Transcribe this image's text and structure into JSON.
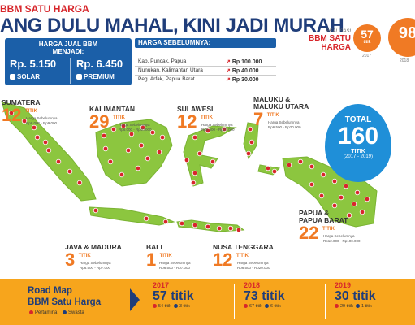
{
  "header": {
    "subtitle": "BBM SATU HARGA",
    "headline": "ANG DULU MAHAL, KINI JADI MURAH"
  },
  "realisasi": {
    "label_top": "REALISASI",
    "label_bottom": "BBM SATU HARGA",
    "c2017_value": "57",
    "c2017_unit": "titik",
    "c2017_year": "2017",
    "c2018_value": "98",
    "c2018_year": "2018"
  },
  "harga_jual": {
    "title_line1": "HARGA JUAL BBM",
    "title_line2": "MENJADI:",
    "solar_price": "Rp. 5.150",
    "premium_price": "Rp. 6.450",
    "solar_label": "SOLAR",
    "premium_label": "PREMIUM"
  },
  "harga_sebelumnya": {
    "title": "HARGA SEBELUMNYA:",
    "rows": [
      {
        "loc": "Kab. Puncak, Papua",
        "price": "Rp 100.000"
      },
      {
        "loc": "Nunukan, Kalimantan Utara",
        "price": "Rp 40.000"
      },
      {
        "loc": "Peg. Arfak, Papua Barat",
        "price": "Rp 30.000"
      }
    ]
  },
  "regions": {
    "sumatera": {
      "name": "SUMATERA",
      "count": "12",
      "unit": "TITIK",
      "sub": "Harga Sebelumnya",
      "price": "Rp6.000 - Rp9.000"
    },
    "kalimantan": {
      "name": "KALIMANTAN",
      "count": "29",
      "unit": "TITIK",
      "sub": "Harga Sebelumnya",
      "price": "Rp6.000 - Rp40.000"
    },
    "sulawesi": {
      "name": "SULAWESI",
      "count": "12",
      "unit": "TITIK",
      "sub": "Harga Sebelumnya",
      "price": "Rp6.500 - Rp25.000"
    },
    "maluku": {
      "name1": "MALUKU &",
      "name2": "MALUKU UTARA",
      "count": "7",
      "unit": "TITIK",
      "sub": "Harga Sebelumnya",
      "price": "Rp6.500 - Rp20.000"
    },
    "java": {
      "name": "JAVA & MADURA",
      "count": "3",
      "unit": "TITIK",
      "sub": "Harga Sebelumnya",
      "price": "Rp6.500 - Rp7.000"
    },
    "bali": {
      "name": "BALI",
      "count": "1",
      "unit": "TITIK",
      "sub": "Harga Sebelumnya",
      "price": "Rp6.500 - Rp7.000"
    },
    "nusa": {
      "name": "NUSA TENGGARA",
      "count": "12",
      "unit": "TITIK",
      "sub": "Harga Sebelumnya",
      "price": "Rp6.500 - Rp20.000"
    },
    "papua": {
      "name1": "PAPUA &",
      "name2": "PAPUA BARAT",
      "count": "22",
      "unit": "TITIK",
      "sub": "Harga Sebelumnya",
      "price": "Rp12.000 - Rp100.000"
    }
  },
  "total": {
    "label": "TOTAL",
    "value": "160",
    "unit": "TITIK",
    "years": "(2017 - 2019)"
  },
  "roadmap": {
    "title_line1": "Road Map",
    "title_line2": "BBM Satu Harga",
    "legend_pertamina": "Pertamina",
    "legend_swasta": "Swasta",
    "years": [
      {
        "year": "2017",
        "value": "57 titik",
        "pertamina": "54 titik",
        "swasta": "3 titik"
      },
      {
        "year": "2018",
        "value": "73 titik",
        "pertamina": "67 titik",
        "swasta": "6 titik"
      },
      {
        "year": "2019",
        "value": "30 titik",
        "pertamina": "29 titik",
        "swasta": "1 titik"
      }
    ]
  },
  "colors": {
    "brand_blue": "#1f3d7a",
    "accent_orange": "#f07a24",
    "banner_yellow": "#f7a51c",
    "land_green": "#8cc63f",
    "pin_red": "#d7262b"
  }
}
